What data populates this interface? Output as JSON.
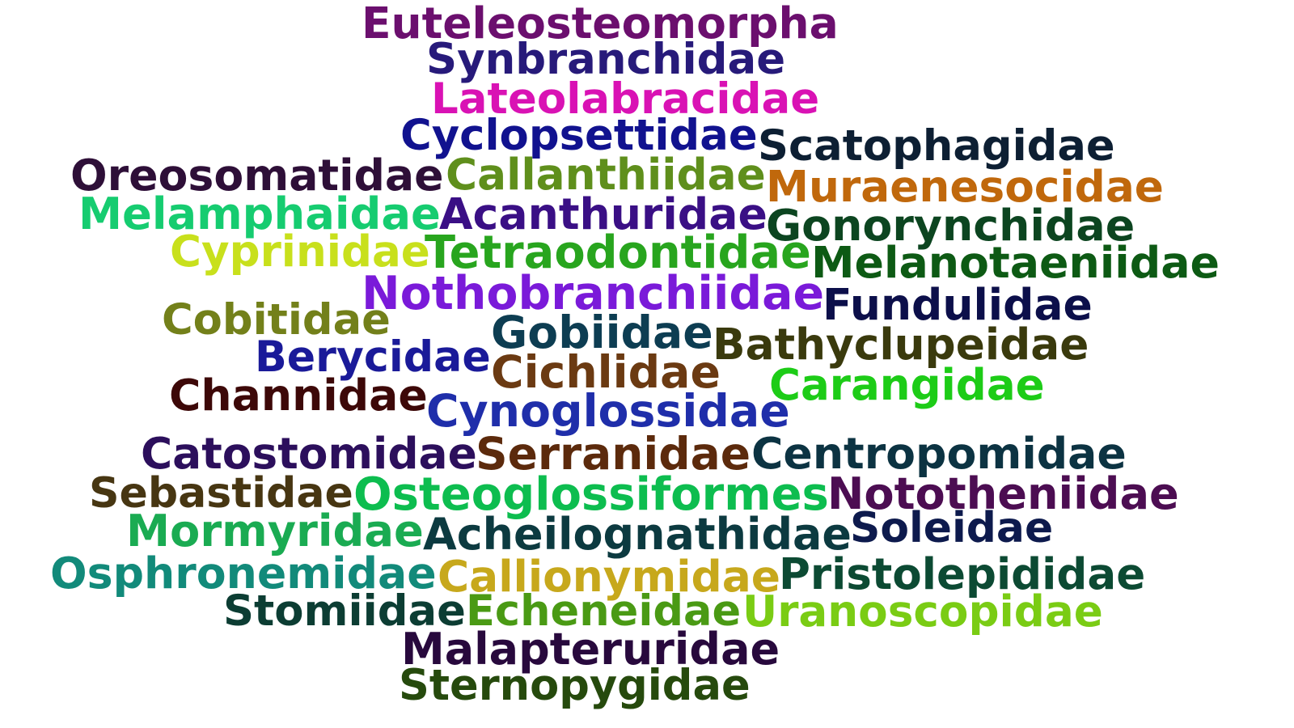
{
  "words": [
    {
      "text": "Euteleosteomorpha",
      "color": "#6b0f6e"
    },
    {
      "text": "Synbranchidae",
      "color": "#271a7a"
    },
    {
      "text": "Lateolabracidae",
      "color": "#d912b4"
    },
    {
      "text": "Cyclopsettidae",
      "color": "#11128f"
    },
    {
      "text": "Scatophagidae",
      "color": "#0d1f33"
    },
    {
      "text": "Oreosomatidae",
      "color": "#2e0f38"
    },
    {
      "text": "Callanthiidae",
      "color": "#5f8f1c"
    },
    {
      "text": "Muraenesocidae",
      "color": "#c0680c"
    },
    {
      "text": "Melamphaidae",
      "color": "#16cc70"
    },
    {
      "text": "Acanthuridae",
      "color": "#3a0f85"
    },
    {
      "text": "Gonorynchidae",
      "color": "#0c4520"
    },
    {
      "text": "Cyprinidae",
      "color": "#c8e01c"
    },
    {
      "text": "Tetraodontidae",
      "color": "#28a51e"
    },
    {
      "text": "Melanotaeniidae",
      "color": "#0d5a14"
    },
    {
      "text": "Nothobranchiidae",
      "color": "#7a1ad9"
    },
    {
      "text": "Fundulidae",
      "color": "#0c0f4a"
    },
    {
      "text": "Cobitidae",
      "color": "#73801a"
    },
    {
      "text": "Gobiidae",
      "color": "#0d3d52"
    },
    {
      "text": "Bathyclupeidae",
      "color": "#3a3a0d"
    },
    {
      "text": "Berycidae",
      "color": "#1a1a99"
    },
    {
      "text": "Cichlidae",
      "color": "#6b3a12"
    },
    {
      "text": "Carangidae",
      "color": "#1dcc17"
    },
    {
      "text": "Channidae",
      "color": "#3d0808"
    },
    {
      "text": "Cynoglossidae",
      "color": "#1f2eaa"
    },
    {
      "text": "Catostomidae",
      "color": "#2c0f5c"
    },
    {
      "text": "Serranidae",
      "color": "#5c2a0c"
    },
    {
      "text": "Centropomidae",
      "color": "#0c3342"
    },
    {
      "text": "Sebastidae",
      "color": "#473612"
    },
    {
      "text": "Osteoglossiformes",
      "color": "#0dbd4f"
    },
    {
      "text": "Nototheniidae",
      "color": "#4c0d52"
    },
    {
      "text": "Mormyridae",
      "color": "#1aab52"
    },
    {
      "text": "Acheilognathidae",
      "color": "#0c3a40"
    },
    {
      "text": "Soleidae",
      "color": "#0d1a4d"
    },
    {
      "text": "Osphronemidae",
      "color": "#128a7a"
    },
    {
      "text": "Callionymidae",
      "color": "#c7a81c"
    },
    {
      "text": "Pristolepididae",
      "color": "#0c4a33"
    },
    {
      "text": "Stomiidae",
      "color": "#0c3d33"
    },
    {
      "text": "Echeneidae",
      "color": "#4a9a14"
    },
    {
      "text": "Uranoscopidae",
      "color": "#7acc14"
    },
    {
      "text": "Malapteruridae",
      "color": "#28093d"
    },
    {
      "text": "Sternopygidae",
      "color": "#264a0d"
    }
  ]
}
